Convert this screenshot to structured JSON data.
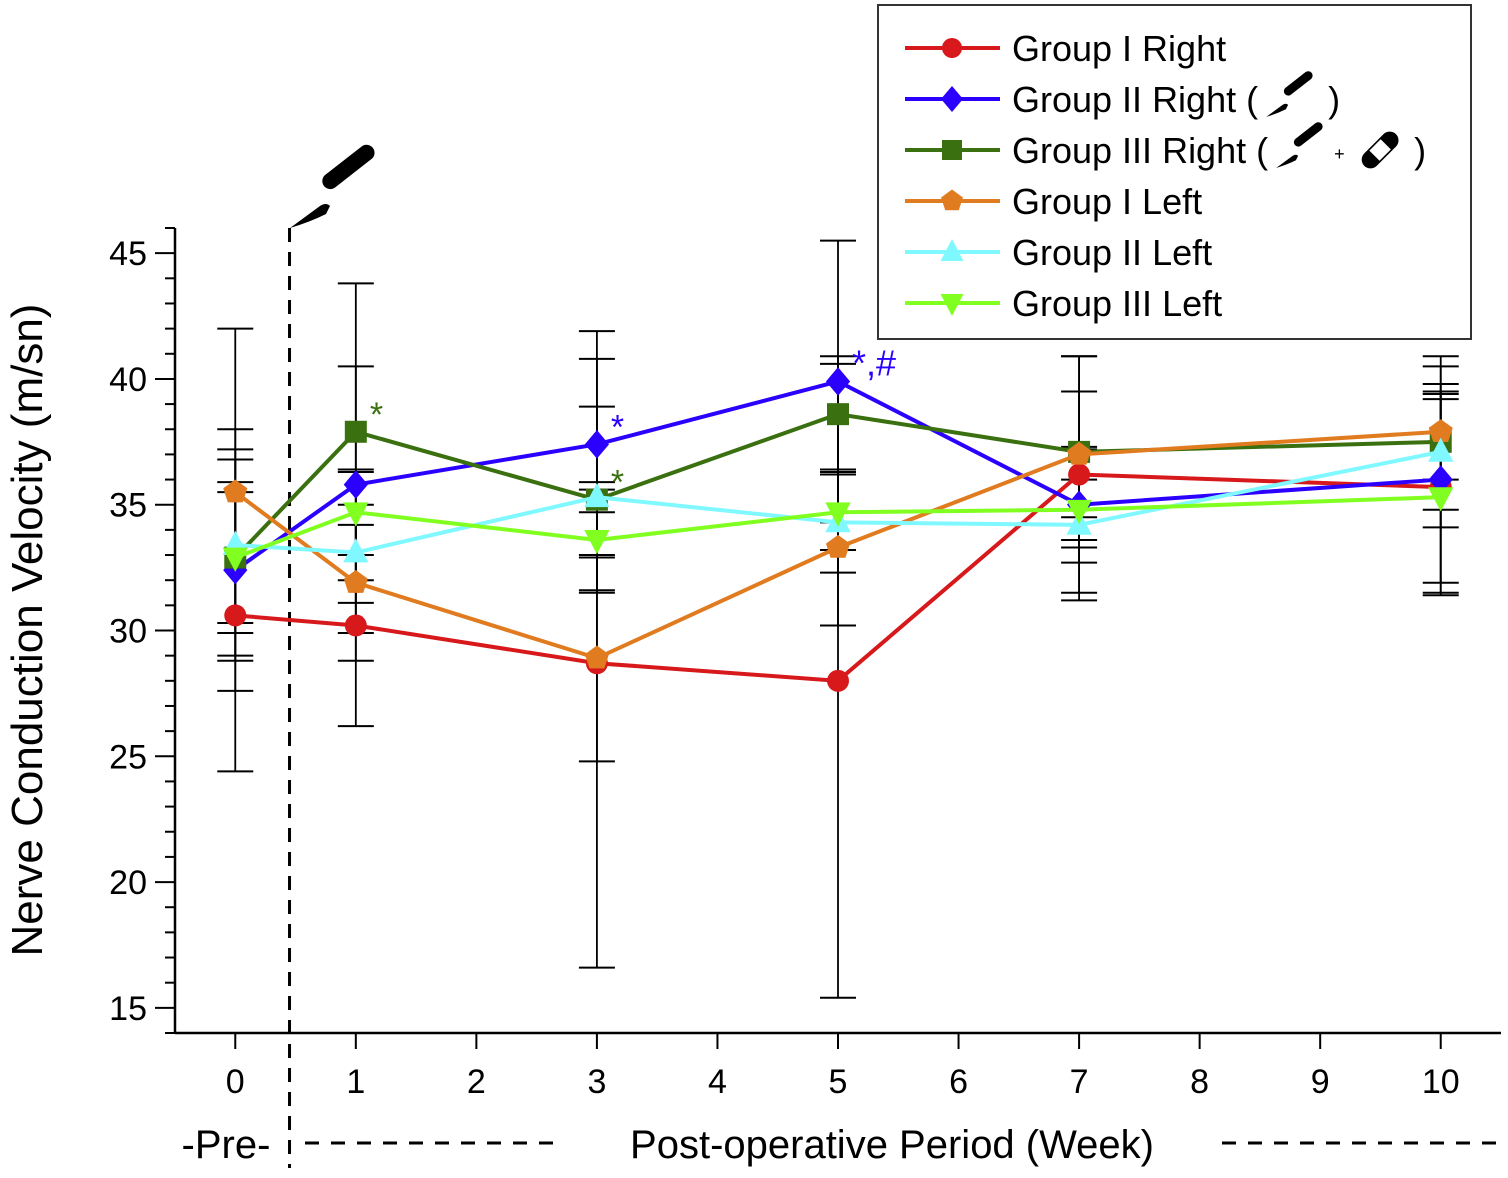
{
  "chart_data": {
    "type": "line",
    "title": "",
    "xlabel": "Post-operative Period (Week)",
    "ylabel": "Nerve Conduction Velocity (m/sn)",
    "pre_label": "-Pre-",
    "x": [
      0,
      1,
      3,
      5,
      7,
      10
    ],
    "xticks": [
      "0",
      "1",
      "2",
      "3",
      "4",
      "5",
      "6",
      "7",
      "8",
      "9",
      "10"
    ],
    "yticks": [
      "15",
      "20",
      "25",
      "30",
      "35",
      "40",
      "45"
    ],
    "xlim": [
      -0.5,
      10.5
    ],
    "ylim": [
      14,
      46
    ],
    "grid": false,
    "legend_position": "top-right",
    "surgery_marker_x": 0.45,
    "series": [
      {
        "name": "Group I Right",
        "color": "#d7191c",
        "marker": "circle",
        "values": [
          30.6,
          30.2,
          28.7,
          28.0,
          36.2,
          35.7
        ],
        "error": [
          6.2,
          4.0,
          12.1,
          12.6,
          4.7,
          3.8
        ]
      },
      {
        "name": "Group II Right (",
        "suffix": ")",
        "icons": [
          "scalpel"
        ],
        "color": "#2b00ff",
        "marker": "diamond",
        "values": [
          32.4,
          35.8,
          37.4,
          39.9,
          35.0,
          36.0
        ],
        "error": [
          4.8,
          4.7,
          4.5,
          5.6,
          2.3,
          4.5
        ]
      },
      {
        "name": "Group III Right (",
        "suffix": ")",
        "icons": [
          "scalpel",
          "bandage"
        ],
        "color": "#3a7010",
        "marker": "square",
        "values": [
          32.9,
          37.9,
          35.2,
          38.6,
          37.1,
          37.5
        ],
        "error": [
          3.0,
          5.9,
          3.7,
          2.3,
          3.8,
          3.4
        ]
      },
      {
        "name": "Group I Left",
        "color": "#e07b20",
        "marker": "pentagon",
        "values": [
          35.5,
          31.9,
          28.9,
          33.3,
          37.0,
          37.9
        ],
        "error": [
          6.5,
          3.1,
          4.1,
          3.1,
          2.5,
          1.9
        ]
      },
      {
        "name": "Group II Left",
        "color": "#80f8ff",
        "marker": "triangle-up",
        "values": [
          33.4,
          33.1,
          35.3,
          34.3,
          34.2,
          37.1
        ],
        "error": [
          4.6,
          3.2,
          0.6,
          2.0,
          3.0,
          2.3
        ]
      },
      {
        "name": "Group III Left",
        "color": "#80ff20",
        "marker": "triangle-down",
        "values": [
          32.9,
          34.7,
          33.6,
          34.7,
          34.8,
          35.3
        ],
        "error": [
          2.6,
          1.7,
          2.0,
          1.5,
          1.2,
          3.9
        ]
      }
    ],
    "annotations": [
      {
        "text": "*",
        "x": 1,
        "y": 37.9,
        "color": "#3a7010"
      },
      {
        "text": "*",
        "x": 3,
        "y": 37.4,
        "color": "#2b00ff"
      },
      {
        "text": "*",
        "x": 3,
        "y": 35.2,
        "color": "#3a7010"
      },
      {
        "text": "*,#",
        "x": 5,
        "y": 39.9,
        "color": "#2b00ff"
      }
    ]
  }
}
